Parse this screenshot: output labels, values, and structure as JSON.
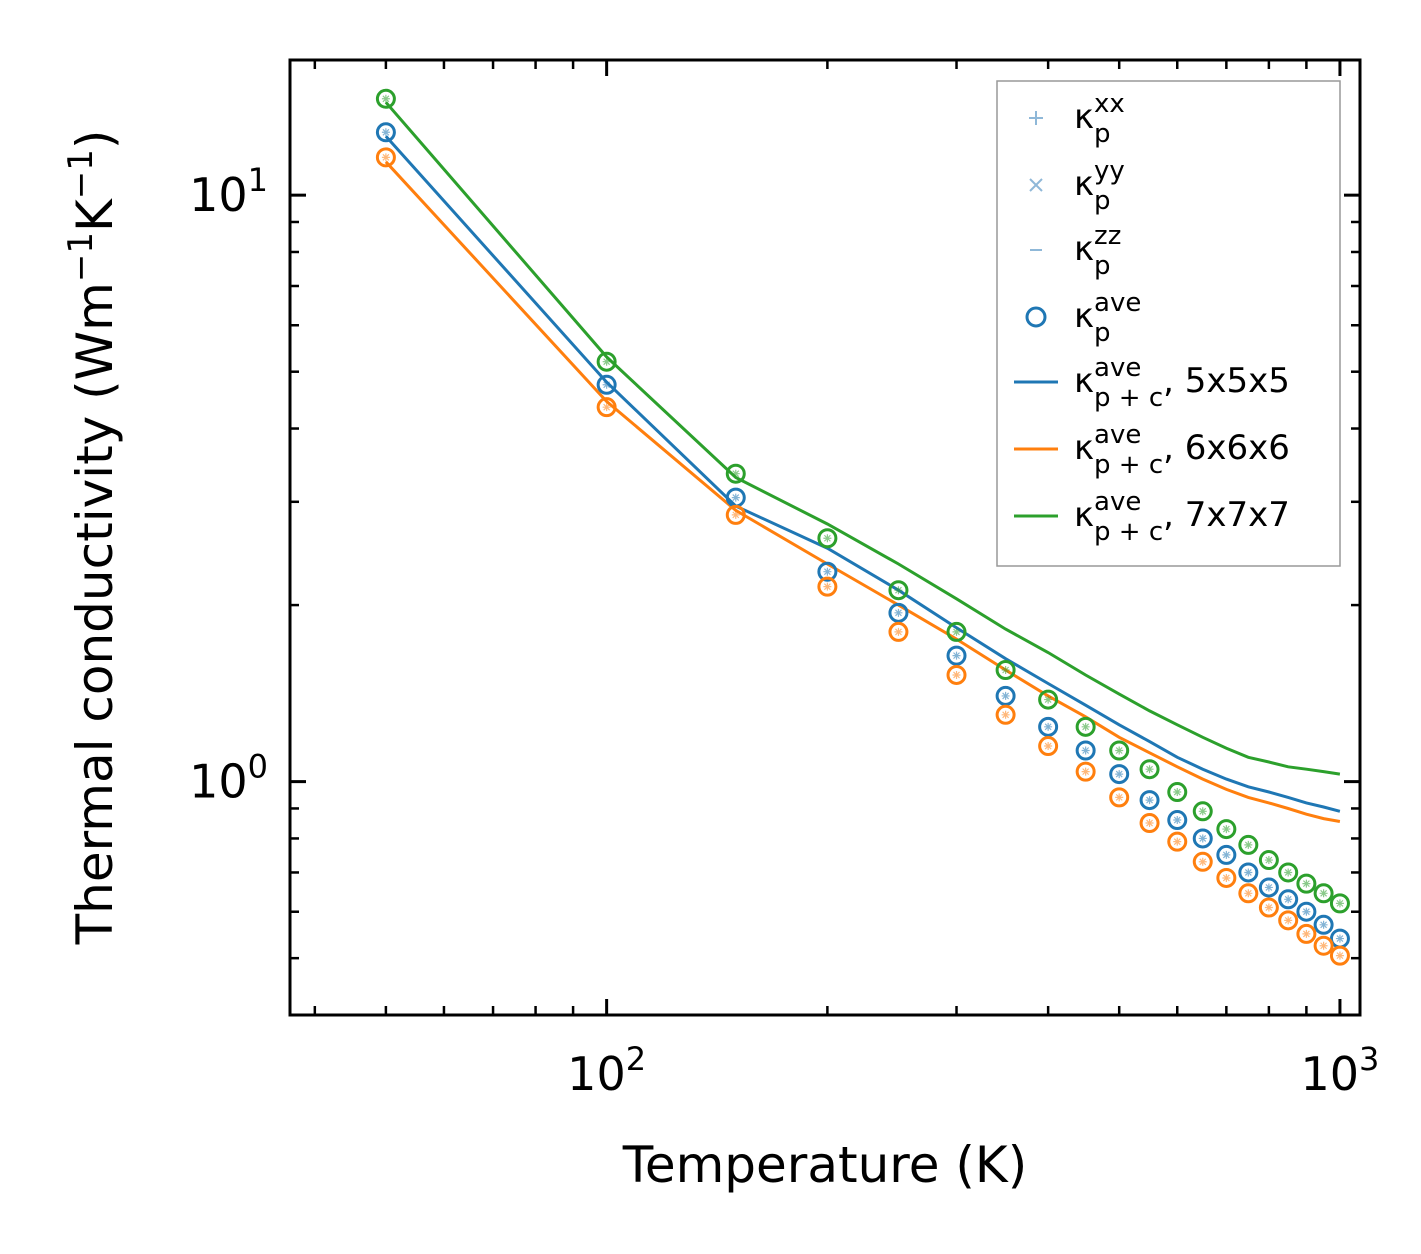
{
  "chart_data": {
    "type": "line",
    "xscale": "log",
    "yscale": "log",
    "xlim": [
      37,
      1065
    ],
    "ylim": [
      0.4,
      17
    ],
    "xlabel": "Temperature (K)",
    "ylabel": {
      "base": "Thermal conductivity (Wm",
      "sup1": "−1",
      "mid": "K",
      "sup2": "−1",
      "end": ")"
    },
    "x_ticks": [
      {
        "value": 100,
        "base": "10",
        "exp": "2"
      },
      {
        "value": 1000,
        "base": "10",
        "exp": "3"
      }
    ],
    "y_ticks": [
      {
        "value": 1,
        "base": "10",
        "exp": "0"
      },
      {
        "value": 10,
        "base": "10",
        "exp": "1"
      }
    ],
    "temperatures": [
      50,
      100,
      150,
      200,
      250,
      300,
      350,
      400,
      450,
      500,
      550,
      600,
      650,
      700,
      750,
      800,
      850,
      900,
      950,
      1000
    ],
    "series": [
      {
        "name": "5x5x5",
        "color": "#1f77b4",
        "points": [
          12.8,
          4.75,
          3.05,
          2.28,
          1.94,
          1.64,
          1.4,
          1.24,
          1.13,
          1.03,
          0.93,
          0.86,
          0.8,
          0.75,
          0.7,
          0.66,
          0.63,
          0.6,
          0.57,
          0.54
        ],
        "line": [
          12.6,
          4.8,
          2.95,
          2.5,
          2.12,
          1.83,
          1.62,
          1.47,
          1.35,
          1.25,
          1.17,
          1.1,
          1.05,
          1.01,
          0.98,
          0.96,
          0.94,
          0.92,
          0.905,
          0.89
        ]
      },
      {
        "name": "6x6x6",
        "color": "#ff7f0e",
        "points": [
          11.6,
          4.35,
          2.85,
          2.15,
          1.8,
          1.52,
          1.3,
          1.15,
          1.04,
          0.94,
          0.85,
          0.79,
          0.73,
          0.685,
          0.645,
          0.61,
          0.58,
          0.55,
          0.525,
          0.505
        ],
        "line": [
          11.4,
          4.45,
          2.9,
          2.35,
          2.0,
          1.75,
          1.55,
          1.4,
          1.29,
          1.19,
          1.12,
          1.06,
          1.01,
          0.97,
          0.94,
          0.92,
          0.9,
          0.88,
          0.865,
          0.855
        ]
      },
      {
        "name": "7x7x7",
        "color": "#2ca02c",
        "points": [
          14.6,
          5.2,
          3.35,
          2.6,
          2.12,
          1.8,
          1.55,
          1.38,
          1.24,
          1.13,
          1.05,
          0.96,
          0.89,
          0.83,
          0.78,
          0.735,
          0.7,
          0.67,
          0.645,
          0.62
        ],
        "line": [
          14.4,
          5.3,
          3.3,
          2.75,
          2.35,
          2.05,
          1.82,
          1.66,
          1.52,
          1.41,
          1.32,
          1.25,
          1.19,
          1.14,
          1.1,
          1.08,
          1.06,
          1.05,
          1.04,
          1.03
        ]
      }
    ],
    "legend": {
      "position": "top-right",
      "entries": [
        {
          "marker": "plus",
          "kappa": "κ",
          "sub": "p",
          "sup": "xx",
          "suffix": ""
        },
        {
          "marker": "cross",
          "kappa": "κ",
          "sub": "p",
          "sup": "yy",
          "suffix": ""
        },
        {
          "marker": "dash",
          "kappa": "κ",
          "sub": "p",
          "sup": "zz",
          "suffix": ""
        },
        {
          "marker": "circle",
          "kappa": "κ",
          "sub": "p",
          "sup": "ave",
          "suffix": ""
        },
        {
          "marker": "line",
          "series": 0,
          "kappa": "κ",
          "sub": "p + c",
          "sup": "ave",
          "suffix": ", 5x5x5"
        },
        {
          "marker": "line",
          "series": 1,
          "kappa": "κ",
          "sub": "p + c",
          "sup": "ave",
          "suffix": ", 6x6x6"
        },
        {
          "marker": "line",
          "series": 2,
          "kappa": "κ",
          "sub": "p + c",
          "sup": "ave",
          "suffix": ", 7x7x7"
        }
      ],
      "light_marker_color": "#8fb8d8",
      "circle_color": "#1f77b4"
    }
  }
}
